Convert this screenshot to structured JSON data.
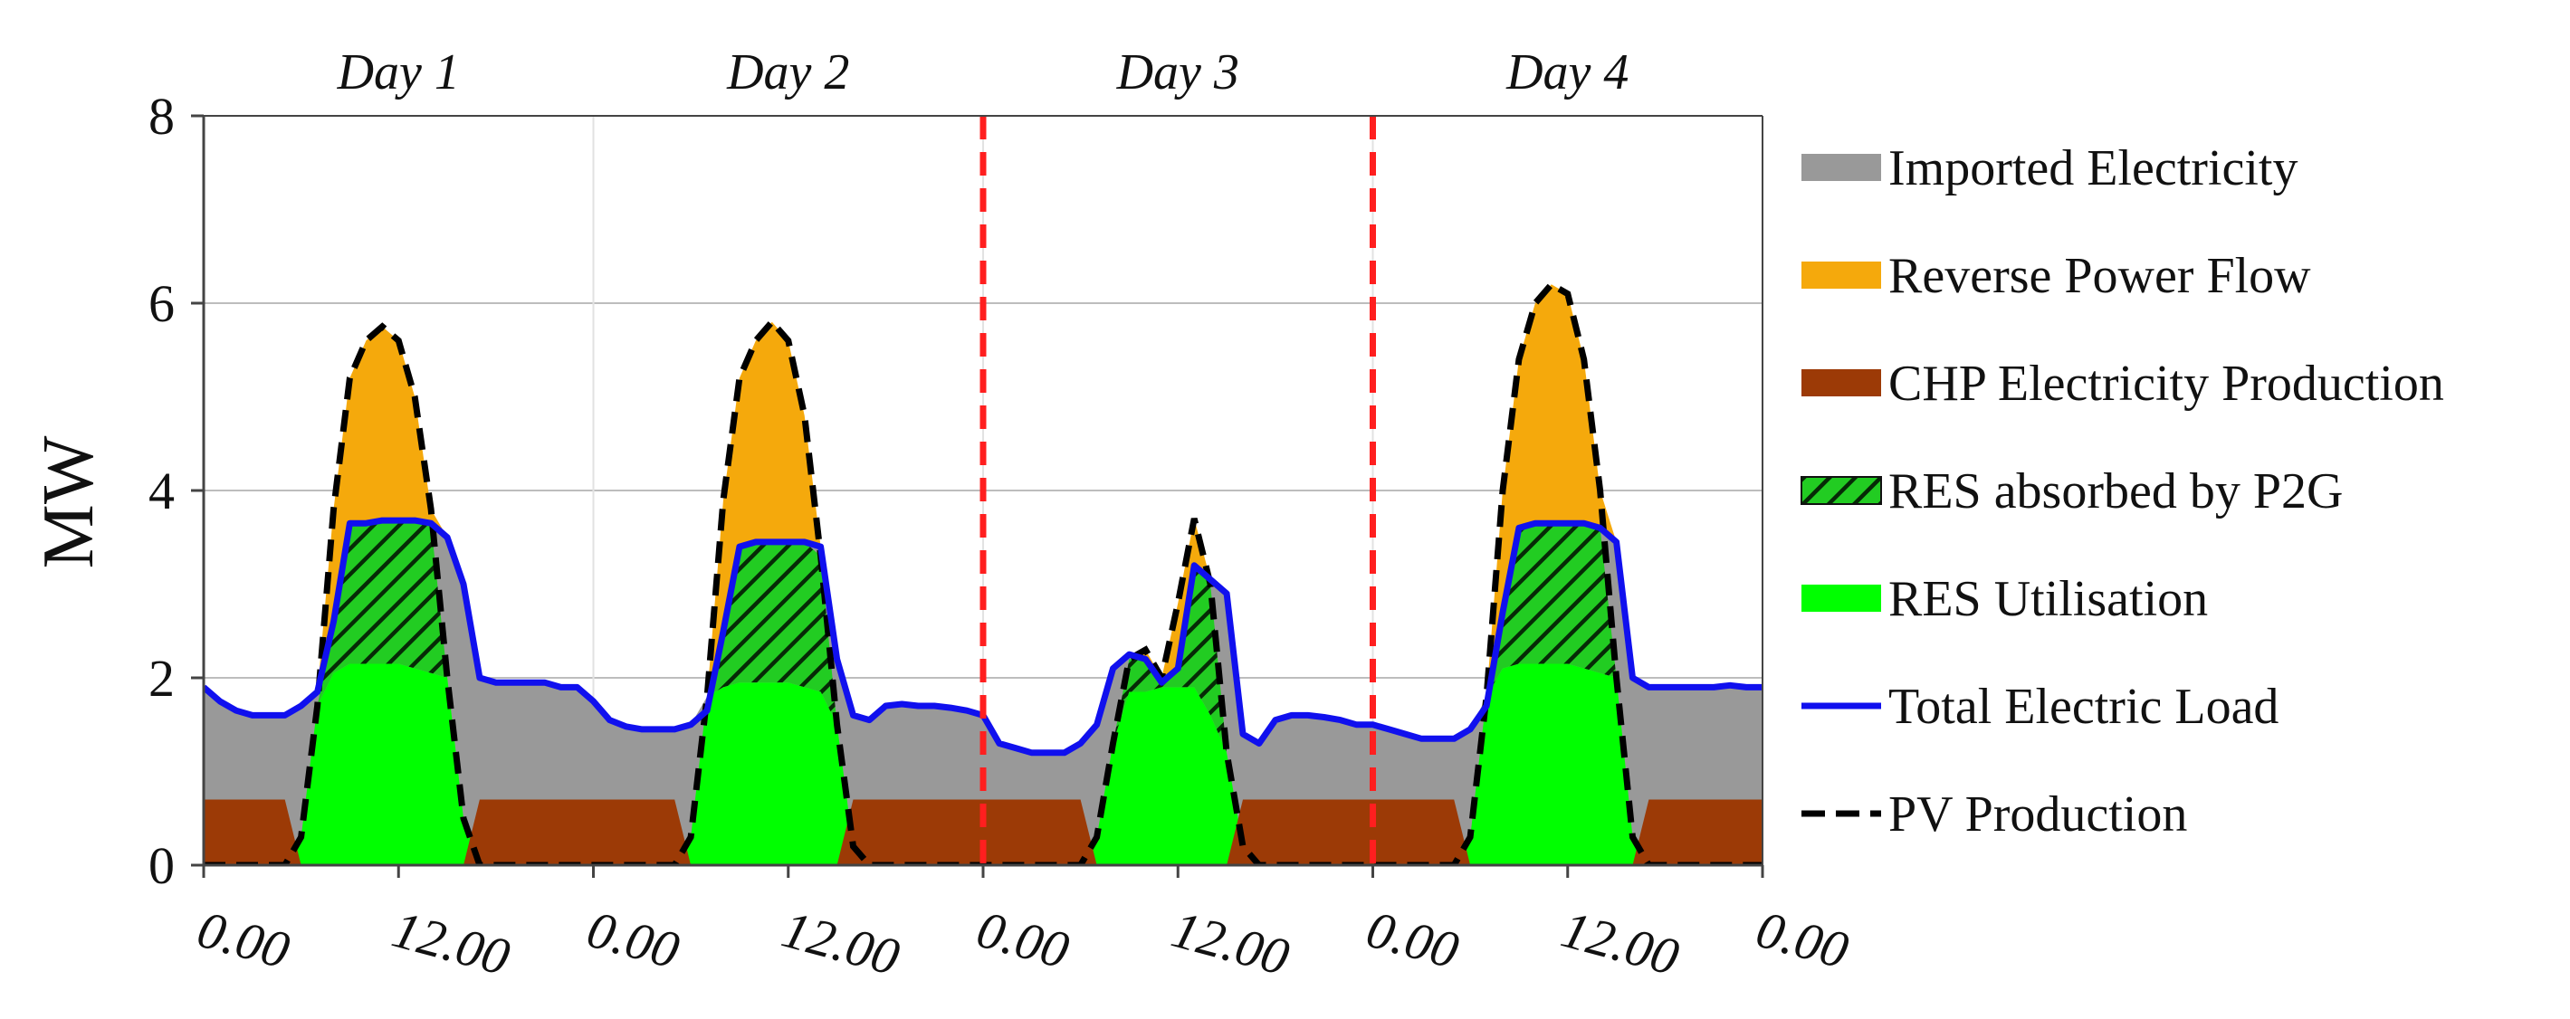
{
  "chart_data": {
    "type": "area",
    "title": "",
    "xlabel": "",
    "ylabel": "MW",
    "ylim": [
      0,
      8
    ],
    "yticks": [
      0,
      2,
      4,
      6,
      8
    ],
    "xlim": [
      0,
      96
    ],
    "hours_per_day": 24,
    "xtick_positions": [
      0,
      12,
      24,
      36,
      48,
      60,
      72,
      84,
      96
    ],
    "xtick_labels": [
      "0.00",
      "12.00",
      "0.00",
      "12.00",
      "0.00",
      "12.00",
      "0.00",
      "12.00",
      "0.00"
    ],
    "grid": "horizontal",
    "day_labels": [
      "Day 1",
      "Day 2",
      "Day 3",
      "Day 4"
    ],
    "day_separators": [
      48,
      72
    ],
    "day_separator_color": "#ff1f1f",
    "legend_position": "right",
    "chp_electricity_mw": 0.7,
    "day_profiles": [
      {
        "day": "Day 1",
        "load": [
          1.9,
          1.75,
          1.65,
          1.6,
          1.6,
          1.6,
          1.7,
          1.85,
          2.6,
          3.65,
          3.65,
          3.68,
          3.68,
          3.68,
          3.65,
          3.5,
          3.0,
          2.0,
          1.95,
          1.95,
          1.95,
          1.95,
          1.9,
          1.9
        ],
        "pv": [
          0,
          0,
          0,
          0,
          0,
          0,
          0.3,
          1.7,
          3.8,
          5.2,
          5.6,
          5.75,
          5.6,
          5.0,
          3.8,
          2.0,
          0.5,
          0,
          0,
          0,
          0,
          0,
          0,
          0
        ],
        "res_utilisation": [
          0,
          0,
          0,
          0,
          0,
          0,
          0.3,
          1.7,
          2.05,
          2.15,
          2.15,
          2.15,
          2.15,
          2.1,
          2.05,
          2.0,
          0.5,
          0,
          0,
          0,
          0,
          0,
          0,
          0
        ]
      },
      {
        "day": "Day 2",
        "load": [
          1.75,
          1.55,
          1.48,
          1.45,
          1.45,
          1.45,
          1.5,
          1.65,
          2.5,
          3.4,
          3.45,
          3.45,
          3.45,
          3.45,
          3.4,
          2.2,
          1.6,
          1.55,
          1.7,
          1.72,
          1.7,
          1.7,
          1.68,
          1.65
        ],
        "pv": [
          0,
          0,
          0,
          0,
          0,
          0,
          0.3,
          1.8,
          3.9,
          5.2,
          5.6,
          5.8,
          5.6,
          4.8,
          3.3,
          1.5,
          0.2,
          0,
          0,
          0,
          0,
          0,
          0,
          0
        ],
        "res_utilisation": [
          0,
          0,
          0,
          0,
          0,
          0,
          0.3,
          1.8,
          1.9,
          1.95,
          1.95,
          1.95,
          1.95,
          1.9,
          1.85,
          1.5,
          0.2,
          0,
          0,
          0,
          0,
          0,
          0,
          0
        ]
      },
      {
        "day": "Day 3",
        "load": [
          1.6,
          1.3,
          1.25,
          1.2,
          1.2,
          1.2,
          1.3,
          1.5,
          2.1,
          2.25,
          2.2,
          1.95,
          2.1,
          3.2,
          3.05,
          2.9,
          1.4,
          1.3,
          1.55,
          1.6,
          1.6,
          1.58,
          1.55,
          1.5
        ],
        "pv": [
          0,
          0,
          0,
          0,
          0,
          0,
          0,
          0.3,
          1.3,
          2.2,
          2.3,
          2.0,
          2.8,
          3.7,
          3.0,
          1.2,
          0.2,
          0,
          0,
          0,
          0,
          0,
          0,
          0
        ],
        "res_utilisation": [
          0,
          0,
          0,
          0,
          0,
          0,
          0,
          0.3,
          1.3,
          1.85,
          1.85,
          1.9,
          1.9,
          1.9,
          1.6,
          1.2,
          0.2,
          0,
          0,
          0,
          0,
          0,
          0,
          0
        ]
      },
      {
        "day": "Day 4",
        "load": [
          1.5,
          1.45,
          1.4,
          1.35,
          1.35,
          1.35,
          1.45,
          1.7,
          2.7,
          3.6,
          3.65,
          3.65,
          3.65,
          3.65,
          3.6,
          3.45,
          2.0,
          1.9,
          1.9,
          1.9,
          1.9,
          1.9,
          1.92,
          1.9
        ],
        "pv": [
          0,
          0,
          0,
          0,
          0,
          0,
          0.3,
          1.8,
          4.0,
          5.4,
          6.0,
          6.2,
          6.1,
          5.4,
          4.0,
          2.0,
          0.3,
          0,
          0,
          0,
          0,
          0,
          0,
          0
        ],
        "res_utilisation": [
          0,
          0,
          0,
          0,
          0,
          0,
          0.3,
          1.8,
          2.1,
          2.15,
          2.15,
          2.15,
          2.15,
          2.1,
          2.05,
          2.0,
          0.3,
          0,
          0,
          0,
          0,
          0,
          0,
          0
        ]
      }
    ],
    "series": [
      {
        "key": "imported",
        "name": "Imported Electricity",
        "color": "#999999",
        "style": "area"
      },
      {
        "key": "reverse",
        "name": "Reverse Power Flow",
        "color": "#f5a90c",
        "style": "area"
      },
      {
        "key": "chp",
        "name": "CHP Electricity Production",
        "color": "#9c3a06",
        "style": "area"
      },
      {
        "key": "p2g",
        "name": "RES absorbed by P2G",
        "color": "#1fd21f",
        "style": "hatched-area"
      },
      {
        "key": "res",
        "name": "RES Utilisation",
        "color": "#00ff00",
        "style": "area"
      },
      {
        "key": "load",
        "name": "Total Electric Load",
        "color": "#1010ee",
        "style": "line"
      },
      {
        "key": "pv",
        "name": "PV Production",
        "color": "#000000",
        "style": "dashed-line"
      }
    ]
  }
}
